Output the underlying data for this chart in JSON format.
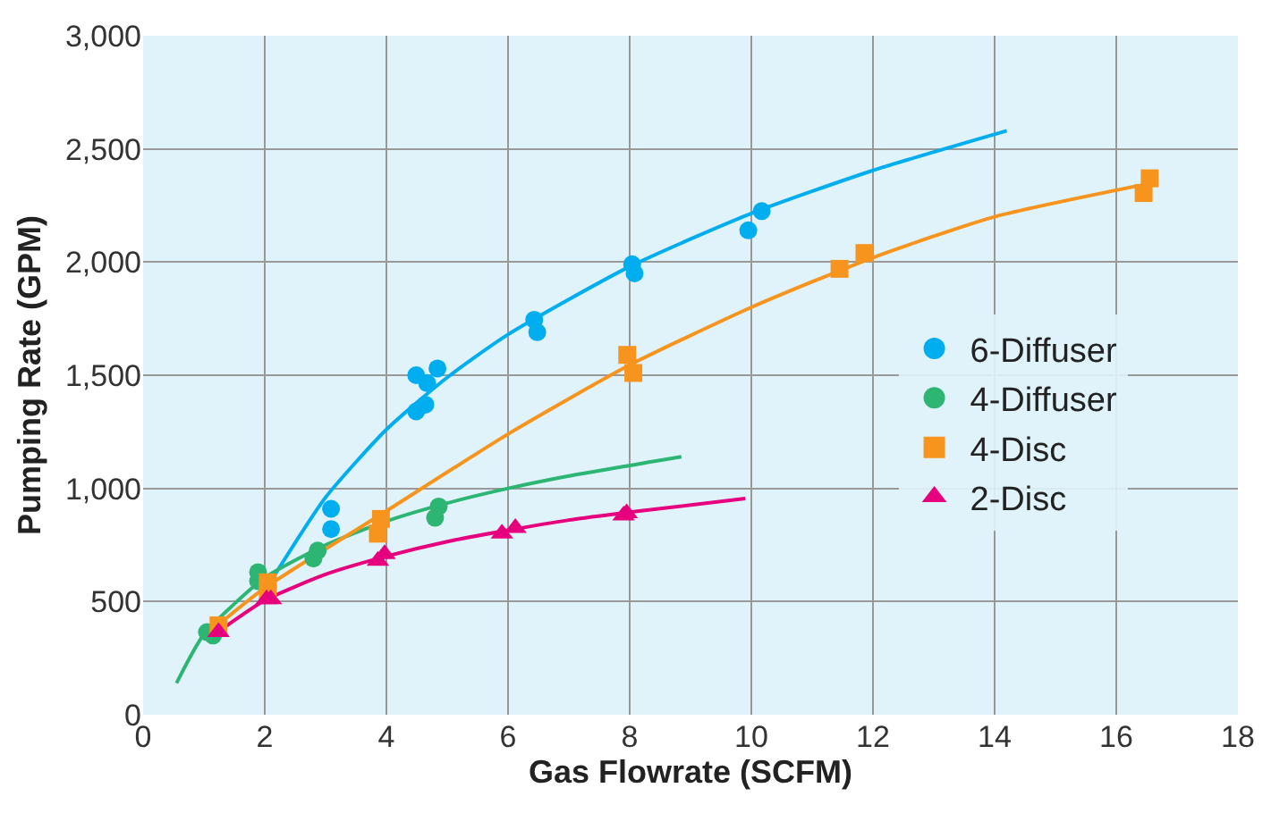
{
  "chart_data": {
    "type": "scatter",
    "xlabel": "Gas Flowrate (SCFM)",
    "ylabel": "Pumping Rate (GPM)",
    "xlim": [
      0,
      18
    ],
    "xticks": [
      0,
      2,
      4,
      6,
      8,
      10,
      12,
      14,
      16,
      18
    ],
    "ylim": [
      0,
      3000
    ],
    "yticks": [
      0,
      500,
      {
        "value": 1000,
        "label": "1,000"
      },
      {
        "value": 1500,
        "label": "1,500"
      },
      {
        "value": 2000,
        "label": "2,000"
      },
      {
        "value": 2500,
        "label": "2,500"
      },
      {
        "value": 3000,
        "label": "3,000"
      }
    ],
    "grid": true,
    "legend": "right",
    "series": [
      {
        "name": "6-Diffuser",
        "color": "#00aeef",
        "marker": "circle",
        "x": [
          3.09,
          3.09,
          4.49,
          4.67,
          4.84,
          4.49,
          4.64,
          6.43,
          6.48,
          8.04,
          8.08,
          9.95,
          10.17
        ],
        "values": [
          910,
          820,
          1500,
          1465,
          1530,
          1340,
          1370,
          1745,
          1690,
          1990,
          1950,
          2140,
          2225
        ]
      },
      {
        "name": "4-Diffuser",
        "color": "#2db574",
        "marker": "circle",
        "x": [
          1.05,
          1.15,
          1.89,
          1.89,
          2.87,
          2.8,
          4.86,
          4.8
        ],
        "values": [
          365,
          350,
          630,
          590,
          725,
          690,
          920,
          870
        ]
      },
      {
        "name": "4-Disc",
        "color": "#f7941d",
        "marker": "square",
        "x": [
          1.24,
          2.05,
          2.05,
          3.91,
          3.86,
          7.96,
          8.06,
          11.45,
          11.86,
          16.55,
          16.45
        ],
        "values": [
          395,
          585,
          540,
          865,
          800,
          1590,
          1510,
          1970,
          2040,
          2370,
          2305
        ]
      },
      {
        "name": "2-Disc",
        "color": "#e6007e",
        "marker": "triangle",
        "x": [
          1.24,
          2.03,
          2.1,
          3.86,
          3.97,
          5.9,
          6.12,
          7.9,
          7.95
        ],
        "values": [
          365,
          510,
          510,
          680,
          710,
          800,
          825,
          880,
          890
        ]
      },
      {
        "color": "#00aeef",
        "type": "line",
        "marker": "none",
        "x": [
          2.1,
          3,
          4,
          5,
          6,
          8,
          10,
          12,
          14.2
        ],
        "values": [
          590,
          960,
          1260,
          1490,
          1680,
          1980,
          2215,
          2405,
          2580
        ]
      },
      {
        "color": "#2db574",
        "type": "line",
        "marker": "none",
        "x": [
          0.55,
          1,
          2,
          3,
          4,
          5,
          6,
          7,
          8.85
        ],
        "values": [
          140,
          355,
          605,
          750,
          855,
          935,
          1000,
          1055,
          1140
        ]
      },
      {
        "color": "#f7941d",
        "type": "line",
        "marker": "none",
        "x": [
          1.2,
          2,
          4,
          6,
          8,
          10,
          12,
          14,
          16.6
        ],
        "values": [
          390,
          560,
          900,
          1240,
          1545,
          1800,
          2020,
          2200,
          2350
        ]
      },
      {
        "color": "#e6007e",
        "type": "line",
        "marker": "none",
        "x": [
          1.2,
          2,
          3,
          4,
          5,
          6,
          7,
          8,
          9.9
        ],
        "values": [
          360,
          505,
          620,
          700,
          765,
          815,
          860,
          895,
          955
        ]
      }
    ]
  }
}
